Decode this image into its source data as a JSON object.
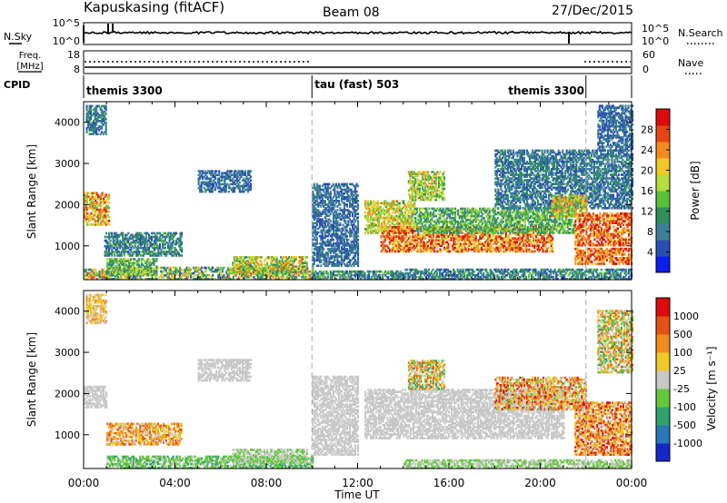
{
  "header": {
    "station": "Kapuskasing (fitACF)",
    "beam": "Beam 08",
    "date": "27/Dec/2015"
  },
  "noise_panel": {
    "left_label": "N.Sky",
    "left_ticks": [
      "10^5",
      "10^0"
    ],
    "right_ticks": [
      "10^5",
      "10^0"
    ],
    "right_label": "N.Search"
  },
  "freq_panel": {
    "left_label_1": "Freq.",
    "left_label_2": "[MHz]",
    "left_ticks": [
      "18",
      "8"
    ],
    "right_ticks": [
      "60",
      "0"
    ],
    "right_label": "Nave"
  },
  "cpid_panel": {
    "label": "CPID",
    "segments": [
      {
        "label": "themis 3300",
        "start_hour": 0,
        "end_hour": 10
      },
      {
        "label": "tau (fast) 503",
        "start_hour": 10,
        "end_hour": 22
      },
      {
        "label": "themis 3300",
        "start_hour": 22,
        "end_hour": 24
      }
    ]
  },
  "xaxis": {
    "title": "Time UT",
    "ticks": [
      "00:00",
      "04:00",
      "08:00",
      "12:00",
      "16:00",
      "20:00",
      "00:00"
    ]
  },
  "colors": {
    "frame": "#000000",
    "guide_line": "#aaaaaa",
    "ground_scatter": "#c8c8c8"
  },
  "chart_data": [
    {
      "type": "heatmap",
      "name": "power",
      "xlabel": "Time UT",
      "ylabel": "Slant Range [km]",
      "xlim": [
        0,
        24
      ],
      "ylim": [
        180,
        4500
      ],
      "yticks": [
        1000,
        2000,
        3000,
        4000
      ],
      "colorbar": {
        "label": "Power [dB]",
        "ticks": [
          4,
          8,
          12,
          16,
          20,
          24,
          28
        ],
        "range": [
          0,
          32
        ],
        "colors": [
          "#0a1ef0",
          "#2a4fb0",
          "#3d7f9a",
          "#2f8f5a",
          "#5bbf3a",
          "#b4dc3c",
          "#f0c828",
          "#f08c1e",
          "#e64614",
          "#dc0a0a"
        ]
      },
      "regions": [
        {
          "t0": 0.0,
          "t1": 1.0,
          "r0": 180,
          "r1": 420,
          "v0": 6,
          "v1": 28
        },
        {
          "t0": 1.0,
          "t1": 10.0,
          "r0": 180,
          "r1": 480,
          "v0": 4,
          "v1": 24
        },
        {
          "t0": 6.5,
          "t1": 9.8,
          "r0": 300,
          "r1": 720,
          "v0": 10,
          "v1": 26
        },
        {
          "t0": 10.0,
          "t1": 14.0,
          "r0": 180,
          "r1": 380,
          "v0": 4,
          "v1": 16
        },
        {
          "t0": 14.0,
          "t1": 24.0,
          "r0": 180,
          "r1": 420,
          "v0": 4,
          "v1": 14
        },
        {
          "t0": 0.0,
          "t1": 1.1,
          "r0": 1500,
          "r1": 2300,
          "v0": 14,
          "v1": 30
        },
        {
          "t0": 0.1,
          "t1": 1.0,
          "r0": 3700,
          "r1": 4400,
          "v0": 4,
          "v1": 12
        },
        {
          "t0": 0.9,
          "t1": 4.3,
          "r0": 750,
          "r1": 1300,
          "v0": 4,
          "v1": 14
        },
        {
          "t0": 1.0,
          "t1": 3.2,
          "r0": 300,
          "r1": 700,
          "v0": 8,
          "v1": 20
        },
        {
          "t0": 5.0,
          "t1": 7.3,
          "r0": 2300,
          "r1": 2800,
          "v0": 4,
          "v1": 10
        },
        {
          "t0": 10.0,
          "t1": 12.0,
          "r0": 500,
          "r1": 2500,
          "v0": 4,
          "v1": 10
        },
        {
          "t0": 12.3,
          "t1": 14.5,
          "r0": 1300,
          "r1": 2100,
          "v0": 12,
          "v1": 26
        },
        {
          "t0": 13.0,
          "t1": 20.5,
          "r0": 850,
          "r1": 1450,
          "v0": 18,
          "v1": 32
        },
        {
          "t0": 14.5,
          "t1": 21.5,
          "r0": 1300,
          "r1": 1900,
          "v0": 8,
          "v1": 18
        },
        {
          "t0": 14.2,
          "t1": 15.8,
          "r0": 2100,
          "r1": 2800,
          "v0": 10,
          "v1": 24
        },
        {
          "t0": 18.0,
          "t1": 24.0,
          "r0": 1900,
          "r1": 3300,
          "v0": 4,
          "v1": 12
        },
        {
          "t0": 20.5,
          "t1": 22.0,
          "r0": 1700,
          "r1": 2200,
          "v0": 12,
          "v1": 26
        },
        {
          "t0": 21.5,
          "t1": 24.0,
          "r0": 550,
          "r1": 950,
          "v0": 20,
          "v1": 32
        },
        {
          "t0": 21.5,
          "t1": 24.0,
          "r0": 1000,
          "r1": 1800,
          "v0": 20,
          "v1": 32
        },
        {
          "t0": 22.5,
          "t1": 24.0,
          "r0": 3300,
          "r1": 4400,
          "v0": 4,
          "v1": 10
        }
      ]
    },
    {
      "type": "heatmap",
      "name": "velocity",
      "xlabel": "Time UT",
      "ylabel": "Slant Range [km]",
      "xlim": [
        0,
        24
      ],
      "ylim": [
        180,
        4500
      ],
      "yticks": [
        1000,
        2000,
        3000,
        4000
      ],
      "colorbar": {
        "label": "Velocity [m s⁻¹]",
        "tick_labels": [
          "1000",
          "500",
          "100",
          "25",
          "-25",
          "-100",
          "-500",
          "-1000"
        ],
        "colors": [
          "#1428c8",
          "#2a78b4",
          "#2fa06e",
          "#64c83c",
          "#c8c8c8",
          "#f0c828",
          "#f08c1e",
          "#e65014",
          "#dc0a0a"
        ]
      },
      "regions": [
        {
          "t0": 0.0,
          "t1": 1.0,
          "r0": 1650,
          "r1": 2150,
          "v0": 4,
          "v1": 4
        },
        {
          "t0": 1.0,
          "t1": 10.0,
          "r0": 180,
          "r1": 480,
          "v0": 2,
          "v1": 4
        },
        {
          "t0": 6.5,
          "t1": 9.8,
          "r0": 300,
          "r1": 650,
          "v0": 3,
          "v1": 4
        },
        {
          "t0": 0.1,
          "t1": 1.0,
          "r0": 3700,
          "r1": 4400,
          "v0": 4,
          "v1": 6
        },
        {
          "t0": 1.0,
          "t1": 4.3,
          "r0": 750,
          "r1": 1250,
          "v0": 4,
          "v1": 7
        },
        {
          "t0": 5.0,
          "t1": 7.3,
          "r0": 2300,
          "r1": 2800,
          "v0": 4,
          "v1": 4
        },
        {
          "t0": 10.0,
          "t1": 12.0,
          "r0": 500,
          "r1": 2400,
          "v0": 4,
          "v1": 4
        },
        {
          "t0": 12.3,
          "t1": 21.0,
          "r0": 900,
          "r1": 2100,
          "v0": 4,
          "v1": 4
        },
        {
          "t0": 14.2,
          "t1": 15.8,
          "r0": 2100,
          "r1": 2800,
          "v0": 2,
          "v1": 7
        },
        {
          "t0": 18.0,
          "t1": 22.0,
          "r0": 1600,
          "r1": 2400,
          "v0": 3,
          "v1": 8
        },
        {
          "t0": 21.5,
          "t1": 24.0,
          "r0": 500,
          "r1": 1800,
          "v0": 4,
          "v1": 8
        },
        {
          "t0": 22.5,
          "t1": 24.0,
          "r0": 2500,
          "r1": 4000,
          "v0": 2,
          "v1": 7
        },
        {
          "t0": 14.0,
          "t1": 24.0,
          "r0": 180,
          "r1": 400,
          "v0": 3,
          "v1": 4
        }
      ]
    }
  ]
}
